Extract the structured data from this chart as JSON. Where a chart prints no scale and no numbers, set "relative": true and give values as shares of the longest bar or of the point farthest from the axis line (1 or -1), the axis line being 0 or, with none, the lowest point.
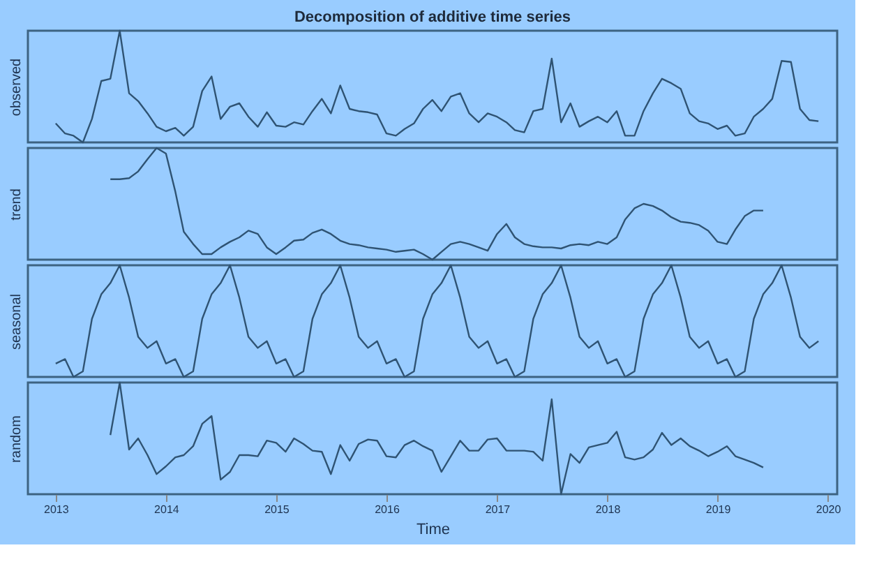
{
  "chart_data": [
    {
      "type": "line",
      "title": "Decomposition of additive time series",
      "ylabel": "observed",
      "relative": true,
      "tick_labels": false,
      "grid": false,
      "xlim": [
        "2012-10",
        "2020-02"
      ],
      "x": [
        "2013-01",
        "2013-02",
        "2013-03",
        "2013-04",
        "2013-05",
        "2013-06",
        "2013-07",
        "2013-08",
        "2013-09",
        "2013-10",
        "2013-11",
        "2013-12",
        "2014-01",
        "2014-02",
        "2014-03",
        "2014-04",
        "2014-05",
        "2014-06",
        "2014-07",
        "2014-08",
        "2014-09",
        "2014-10",
        "2014-11",
        "2014-12",
        "2015-01",
        "2015-02",
        "2015-03",
        "2015-04",
        "2015-05",
        "2015-06",
        "2015-07",
        "2015-08",
        "2015-09",
        "2015-10",
        "2015-11",
        "2015-12",
        "2016-01",
        "2016-02",
        "2016-03",
        "2016-04",
        "2016-05",
        "2016-06",
        "2016-07",
        "2016-08",
        "2016-09",
        "2016-10",
        "2016-11",
        "2016-12",
        "2017-01",
        "2017-02",
        "2017-03",
        "2017-04",
        "2017-05",
        "2017-06",
        "2017-07",
        "2017-08",
        "2017-09",
        "2017-10",
        "2017-11",
        "2017-12",
        "2018-01",
        "2018-02",
        "2018-03",
        "2018-04",
        "2018-05",
        "2018-06",
        "2018-07",
        "2018-08",
        "2018-09",
        "2018-10",
        "2018-11",
        "2018-12",
        "2019-01",
        "2019-02",
        "2019-03",
        "2019-04",
        "2019-05",
        "2019-06",
        "2019-07",
        "2019-08",
        "2019-09",
        "2019-10",
        "2019-11",
        "2019-12"
      ],
      "series": [
        {
          "color": "#2f5373",
          "values": [
            0.17,
            0.08,
            0.06,
            0,
            0.21,
            0.55,
            0.57,
            1,
            0.44,
            0.37,
            0.26,
            0.14,
            0.1,
            0.13,
            0.06,
            0.14,
            0.46,
            0.59,
            0.21,
            0.32,
            0.35,
            0.23,
            0.14,
            0.27,
            0.15,
            0.14,
            0.18,
            0.16,
            0.28,
            0.39,
            0.26,
            0.51,
            0.3,
            0.28,
            0.27,
            0.25,
            0.08,
            0.06,
            0.12,
            0.17,
            0.3,
            0.38,
            0.28,
            0.41,
            0.44,
            0.26,
            0.18,
            0.26,
            0.23,
            0.18,
            0.11,
            0.09,
            0.28,
            0.3,
            0.75,
            0.18,
            0.35,
            0.14,
            0.19,
            0.23,
            0.18,
            0.28,
            0.06,
            0.06,
            0.28,
            0.44,
            0.57,
            0.53,
            0.48,
            0.26,
            0.19,
            0.17,
            0.12,
            0.15,
            0.06,
            0.08,
            0.23,
            0.3,
            0.39,
            0.73,
            0.72,
            0.3,
            0.2,
            0.19
          ]
        }
      ]
    },
    {
      "type": "line",
      "ylabel": "trend",
      "relative": true,
      "tick_labels": false,
      "grid": false,
      "xlim": [
        "2012-10",
        "2020-02"
      ],
      "x": [
        "2013-07",
        "2013-08",
        "2013-09",
        "2013-10",
        "2013-11",
        "2013-12",
        "2014-01",
        "2014-02",
        "2014-03",
        "2014-04",
        "2014-05",
        "2014-06",
        "2014-07",
        "2014-08",
        "2014-09",
        "2014-10",
        "2014-11",
        "2014-12",
        "2015-01",
        "2015-02",
        "2015-03",
        "2015-04",
        "2015-05",
        "2015-06",
        "2015-07",
        "2015-08",
        "2015-09",
        "2015-10",
        "2015-11",
        "2015-12",
        "2016-01",
        "2016-02",
        "2016-03",
        "2016-04",
        "2016-05",
        "2016-06",
        "2016-07",
        "2016-08",
        "2016-09",
        "2016-10",
        "2016-11",
        "2016-12",
        "2017-01",
        "2017-02",
        "2017-03",
        "2017-04",
        "2017-05",
        "2017-06",
        "2017-07",
        "2017-08",
        "2017-09",
        "2017-10",
        "2017-11",
        "2017-12",
        "2018-01",
        "2018-02",
        "2018-03",
        "2018-04",
        "2018-05",
        "2018-06",
        "2018-07",
        "2018-08",
        "2018-09",
        "2018-10",
        "2018-11",
        "2018-12",
        "2019-01",
        "2019-02",
        "2019-03",
        "2019-04",
        "2019-05",
        "2019-06"
      ],
      "series": [
        {
          "color": "#2f5373",
          "values": [
            0.72,
            0.72,
            0.73,
            0.79,
            0.9,
            1,
            0.95,
            0.61,
            0.25,
            0.14,
            0.05,
            0.05,
            0.11,
            0.16,
            0.2,
            0.26,
            0.23,
            0.11,
            0.05,
            0.11,
            0.17,
            0.18,
            0.24,
            0.27,
            0.23,
            0.17,
            0.14,
            0.13,
            0.11,
            0.1,
            0.09,
            0.07,
            0.08,
            0.09,
            0.05,
            0,
            0.07,
            0.14,
            0.16,
            0.14,
            0.11,
            0.08,
            0.23,
            0.32,
            0.2,
            0.14,
            0.12,
            0.11,
            0.11,
            0.1,
            0.13,
            0.14,
            0.13,
            0.16,
            0.14,
            0.2,
            0.36,
            0.46,
            0.5,
            0.48,
            0.44,
            0.38,
            0.34,
            0.33,
            0.31,
            0.26,
            0.16,
            0.14,
            0.27,
            0.39,
            0.44,
            0.44
          ]
        }
      ]
    },
    {
      "type": "line",
      "ylabel": "seasonal",
      "relative": true,
      "tick_labels": false,
      "grid": false,
      "xlim": [
        "2012-10",
        "2020-02"
      ],
      "x": [
        "2013-01",
        "2013-02",
        "2013-03",
        "2013-04",
        "2013-05",
        "2013-06",
        "2013-07",
        "2013-08",
        "2013-09",
        "2013-10",
        "2013-11",
        "2013-12",
        "2014-01",
        "2014-02",
        "2014-03",
        "2014-04",
        "2014-05",
        "2014-06",
        "2014-07",
        "2014-08",
        "2014-09",
        "2014-10",
        "2014-11",
        "2014-12",
        "2015-01",
        "2015-02",
        "2015-03",
        "2015-04",
        "2015-05",
        "2015-06",
        "2015-07",
        "2015-08",
        "2015-09",
        "2015-10",
        "2015-11",
        "2015-12",
        "2016-01",
        "2016-02",
        "2016-03",
        "2016-04",
        "2016-05",
        "2016-06",
        "2016-07",
        "2016-08",
        "2016-09",
        "2016-10",
        "2016-11",
        "2016-12",
        "2017-01",
        "2017-02",
        "2017-03",
        "2017-04",
        "2017-05",
        "2017-06",
        "2017-07",
        "2017-08",
        "2017-09",
        "2017-10",
        "2017-11",
        "2017-12",
        "2018-01",
        "2018-02",
        "2018-03",
        "2018-04",
        "2018-05",
        "2018-06",
        "2018-07",
        "2018-08",
        "2018-09",
        "2018-10",
        "2018-11",
        "2018-12",
        "2019-01",
        "2019-02",
        "2019-03",
        "2019-04",
        "2019-05",
        "2019-06",
        "2019-07",
        "2019-08",
        "2019-09",
        "2019-10",
        "2019-11",
        "2019-12"
      ],
      "series": [
        {
          "color": "#2f5373",
          "values": [
            0.12,
            0.16,
            0,
            0.05,
            0.52,
            0.74,
            0.84,
            1,
            0.71,
            0.36,
            0.26,
            0.32,
            0.12,
            0.16,
            0,
            0.05,
            0.52,
            0.74,
            0.84,
            1,
            0.71,
            0.36,
            0.26,
            0.32,
            0.12,
            0.16,
            0,
            0.05,
            0.52,
            0.74,
            0.84,
            1,
            0.71,
            0.36,
            0.26,
            0.32,
            0.12,
            0.16,
            0,
            0.05,
            0.52,
            0.74,
            0.84,
            1,
            0.71,
            0.36,
            0.26,
            0.32,
            0.12,
            0.16,
            0,
            0.05,
            0.52,
            0.74,
            0.84,
            1,
            0.71,
            0.36,
            0.26,
            0.32,
            0.12,
            0.16,
            0,
            0.05,
            0.52,
            0.74,
            0.84,
            1,
            0.71,
            0.36,
            0.26,
            0.32,
            0.12,
            0.16,
            0,
            0.05,
            0.52,
            0.74,
            0.84,
            1,
            0.71,
            0.36,
            0.26,
            0.32
          ]
        }
      ]
    },
    {
      "type": "line",
      "ylabel": "random",
      "xlabel": "Time",
      "relative": true,
      "tick_labels": "x",
      "grid": false,
      "xlim": [
        "2012-10",
        "2020-02"
      ],
      "xticks": [
        "2013",
        "2014",
        "2015",
        "2016",
        "2017",
        "2018",
        "2019",
        "2020"
      ],
      "x": [
        "2013-07",
        "2013-08",
        "2013-09",
        "2013-10",
        "2013-11",
        "2013-12",
        "2014-01",
        "2014-02",
        "2014-03",
        "2014-04",
        "2014-05",
        "2014-06",
        "2014-07",
        "2014-08",
        "2014-09",
        "2014-10",
        "2014-11",
        "2014-12",
        "2015-01",
        "2015-02",
        "2015-03",
        "2015-04",
        "2015-05",
        "2015-06",
        "2015-07",
        "2015-08",
        "2015-09",
        "2015-10",
        "2015-11",
        "2015-12",
        "2016-01",
        "2016-02",
        "2016-03",
        "2016-04",
        "2016-05",
        "2016-06",
        "2016-07",
        "2016-08",
        "2016-09",
        "2016-10",
        "2016-11",
        "2016-12",
        "2017-01",
        "2017-02",
        "2017-03",
        "2017-04",
        "2017-05",
        "2017-06",
        "2017-07",
        "2017-08",
        "2017-09",
        "2017-10",
        "2017-11",
        "2017-12",
        "2018-01",
        "2018-02",
        "2018-03",
        "2018-04",
        "2018-05",
        "2018-06",
        "2018-07",
        "2018-08",
        "2018-09",
        "2018-10",
        "2018-11",
        "2018-12",
        "2019-01",
        "2019-02",
        "2019-03",
        "2019-04",
        "2019-05",
        "2019-06"
      ],
      "series": [
        {
          "color": "#2f5373",
          "values": [
            0.53,
            1,
            0.4,
            0.5,
            0.35,
            0.18,
            0.25,
            0.33,
            0.35,
            0.43,
            0.63,
            0.7,
            0.13,
            0.2,
            0.35,
            0.35,
            0.34,
            0.48,
            0.46,
            0.38,
            0.5,
            0.45,
            0.39,
            0.38,
            0.18,
            0.44,
            0.3,
            0.45,
            0.49,
            0.48,
            0.34,
            0.33,
            0.44,
            0.48,
            0.43,
            0.39,
            0.2,
            0.34,
            0.48,
            0.39,
            0.39,
            0.49,
            0.5,
            0.39,
            0.39,
            0.39,
            0.38,
            0.3,
            0.85,
            0,
            0.36,
            0.28,
            0.42,
            0.44,
            0.46,
            0.56,
            0.33,
            0.31,
            0.33,
            0.4,
            0.55,
            0.44,
            0.5,
            0.43,
            0.39,
            0.34,
            0.38,
            0.43,
            0.34,
            0.31,
            0.28,
            0.24
          ]
        }
      ]
    }
  ]
}
